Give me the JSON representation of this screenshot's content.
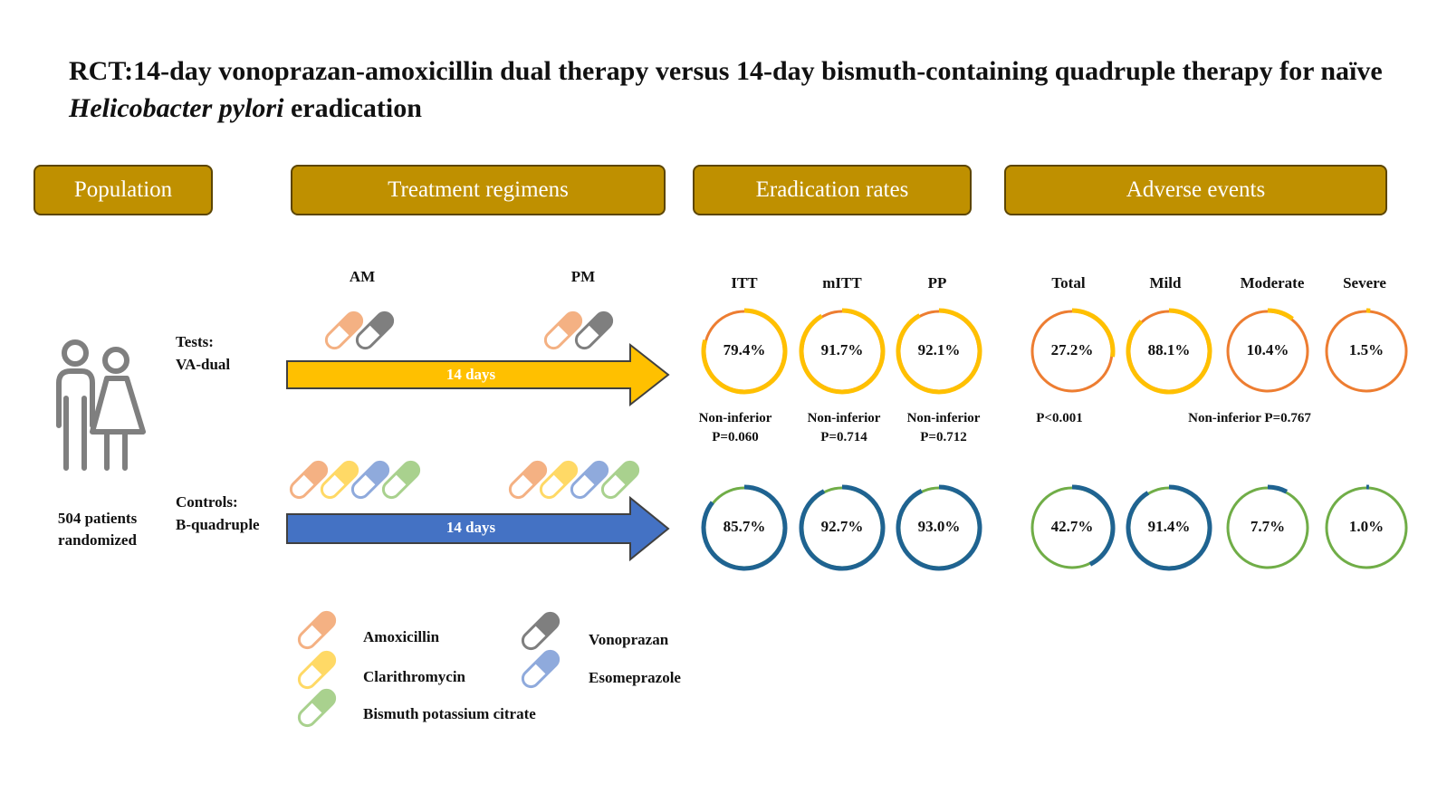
{
  "title": {
    "part1": "RCT:14-day vonoprazan-amoxicillin dual therapy versus 14-day bismuth-containing quadruple therapy for naïve ",
    "italic": "Helicobacter pylori",
    "part2": " eradication"
  },
  "headers": {
    "population": "Population",
    "treatment": "Treatment regimens",
    "eradication": "Eradication rates",
    "adverse": "Adverse events"
  },
  "population": {
    "count": "504 patients",
    "text": "randomized"
  },
  "timing": {
    "am": "AM",
    "pm": "PM"
  },
  "groups": {
    "test": {
      "line1": "Tests:",
      "line2": "VA-dual",
      "duration": "14 days",
      "arrow_color": "#ffc000"
    },
    "control": {
      "line1": "Controls:",
      "line2": "B-quadruple",
      "duration": "14 days",
      "arrow_color": "#4472c4"
    }
  },
  "eradication_cols": [
    "ITT",
    "mITT",
    "PP"
  ],
  "adverse_cols": [
    "Total",
    "Mild",
    "Moderate",
    "Severe"
  ],
  "rings": {
    "test_erad": [
      79.4,
      91.7,
      92.1
    ],
    "test_erad_labels": [
      "79.4%",
      "91.7%",
      "92.1%"
    ],
    "ctrl_erad": [
      85.7,
      92.7,
      93.0
    ],
    "ctrl_erad_labels": [
      "85.7%",
      "92.7%",
      "93.0%"
    ],
    "test_ae": [
      27.2,
      88.1,
      10.4,
      1.5
    ],
    "test_ae_labels": [
      "27.2%",
      "88.1%",
      "10.4%",
      "1.5%"
    ],
    "ctrl_ae": [
      42.7,
      91.4,
      7.7,
      1.0
    ],
    "ctrl_ae_labels": [
      "42.7%",
      "91.4%",
      "7.7%",
      "1.0%"
    ]
  },
  "stats": {
    "itt": {
      "l1": "Non-inferior",
      "l2": "P=0.060"
    },
    "mitt": {
      "l1": "Non-inferior",
      "l2": "P=0.714"
    },
    "pp": {
      "l1": "Non-inferior",
      "l2": "P=0.712"
    },
    "total": "P<0.001",
    "severity": "Non-inferior P=0.767"
  },
  "legend": {
    "amoxicillin": "Amoxicillin",
    "clarithromycin": "Clarithromycin",
    "bismuth": "Bismuth potassium citrate",
    "vonoprazan": "Vonoprazan",
    "esomeprazole": "Esomeprazole"
  },
  "colors": {
    "header": "#bf9000",
    "amoxicillin": "#f4b183",
    "clarithromycin": "#ffd966",
    "bismuth": "#a9d18e",
    "vonoprazan": "#7f7f7f",
    "esomeprazole": "#8faadc",
    "test_ring_base": "#ed7d31",
    "test_ring_arc": "#ffc000",
    "ctrl_ring_base": "#70ad47",
    "ctrl_ring_arc": "#1f6391"
  }
}
